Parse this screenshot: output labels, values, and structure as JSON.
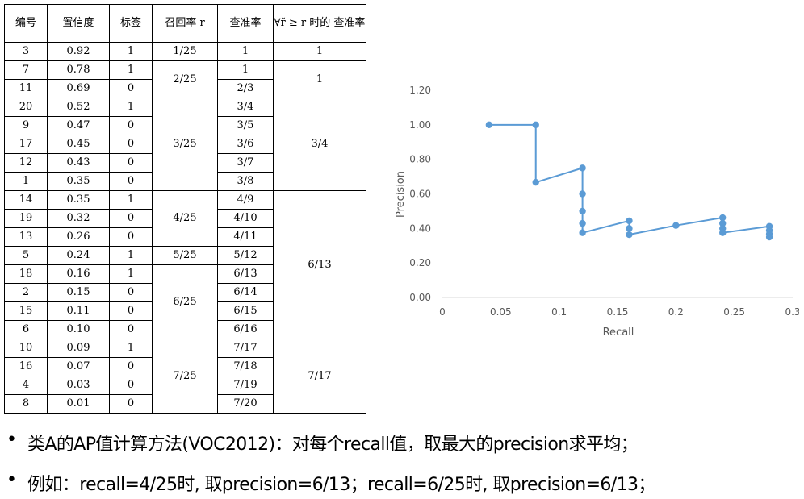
{
  "table": {
    "headers": [
      "编号",
      "置信度",
      "标签",
      "召回率 r",
      "查准率",
      "∀r̃ ≥ r 时的 查准率"
    ],
    "rows": [
      {
        "id": "3",
        "conf": "0.92",
        "label": "1",
        "prec": "1"
      },
      {
        "id": "7",
        "conf": "0.78",
        "label": "1",
        "prec": "1"
      },
      {
        "id": "11",
        "conf": "0.69",
        "label": "0",
        "prec": "2/3"
      },
      {
        "id": "20",
        "conf": "0.52",
        "label": "1",
        "prec": "3/4"
      },
      {
        "id": "9",
        "conf": "0.47",
        "label": "0",
        "prec": "3/5"
      },
      {
        "id": "17",
        "conf": "0.45",
        "label": "0",
        "prec": "3/6"
      },
      {
        "id": "12",
        "conf": "0.43",
        "label": "0",
        "prec": "3/7"
      },
      {
        "id": "1",
        "conf": "0.35",
        "label": "0",
        "prec": "3/8"
      },
      {
        "id": "14",
        "conf": "0.35",
        "label": "1",
        "prec": "4/9"
      },
      {
        "id": "19",
        "conf": "0.32",
        "label": "0",
        "prec": "4/10"
      },
      {
        "id": "13",
        "conf": "0.26",
        "label": "0",
        "prec": "4/11"
      },
      {
        "id": "5",
        "conf": "0.24",
        "label": "1",
        "prec": "5/12"
      },
      {
        "id": "18",
        "conf": "0.16",
        "label": "1",
        "prec": "6/13"
      },
      {
        "id": "2",
        "conf": "0.15",
        "label": "0",
        "prec": "6/14"
      },
      {
        "id": "15",
        "conf": "0.11",
        "label": "0",
        "prec": "6/15"
      },
      {
        "id": "6",
        "conf": "0.10",
        "label": "0",
        "prec": "6/16"
      },
      {
        "id": "10",
        "conf": "0.09",
        "label": "1",
        "prec": "7/17"
      },
      {
        "id": "16",
        "conf": "0.07",
        "label": "0",
        "prec": "7/18"
      },
      {
        "id": "4",
        "conf": "0.03",
        "label": "0",
        "prec": "7/19"
      },
      {
        "id": "8",
        "conf": "0.01",
        "label": "0",
        "prec": "7/20"
      }
    ],
    "recall_groups": [
      {
        "value": "1/25",
        "span": 1
      },
      {
        "value": "2/25",
        "span": 2
      },
      {
        "value": "3/25",
        "span": 5
      },
      {
        "value": "4/25",
        "span": 3
      },
      {
        "value": "5/25",
        "span": 1
      },
      {
        "value": "6/25",
        "span": 4
      },
      {
        "value": "7/25",
        "span": 4
      }
    ],
    "max_groups": [
      {
        "value": "1",
        "span": 1
      },
      {
        "value": "1",
        "span": 2
      },
      {
        "value": "3/4",
        "span": 5
      },
      {
        "value": "6/13",
        "span": 8
      },
      {
        "value": "7/17",
        "span": 4
      }
    ]
  },
  "chart_data": {
    "type": "line",
    "title": "",
    "xlabel": "Recall",
    "ylabel": "Precision",
    "xlim": [
      0,
      0.3
    ],
    "ylim": [
      0,
      1.2
    ],
    "xticks": [
      "0",
      "0.05",
      "0.1",
      "0.15",
      "0.2",
      "0.25",
      "0.3"
    ],
    "yticks": [
      "0.00",
      "0.20",
      "0.40",
      "0.60",
      "0.80",
      "1.00",
      "1.20"
    ],
    "color": "#5b9bd5",
    "grid": false,
    "series": [
      {
        "x": [
          0.04,
          0.08,
          0.08,
          0.12,
          0.12,
          0.12,
          0.12,
          0.12,
          0.16,
          0.16,
          0.16,
          0.2,
          0.24,
          0.24,
          0.24,
          0.24,
          0.28,
          0.28,
          0.28,
          0.28
        ],
        "y": [
          1.0,
          1.0,
          0.667,
          0.75,
          0.6,
          0.5,
          0.429,
          0.375,
          0.444,
          0.4,
          0.364,
          0.417,
          0.462,
          0.429,
          0.4,
          0.375,
          0.412,
          0.389,
          0.368,
          0.35
        ]
      }
    ]
  },
  "bullets": [
    "类A的AP值计算方法(VOC2012)：对每个recall值，取最大的precision求平均；",
    "例如：recall=4/25时, 取precision=6/13；recall=6/25时, 取precision=6/13；"
  ]
}
